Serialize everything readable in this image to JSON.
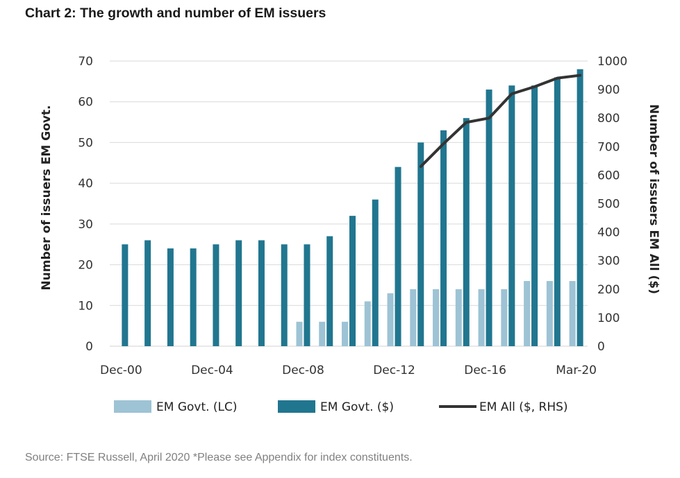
{
  "title": "Chart 2: The growth and number of EM issuers",
  "source": "Source: FTSE Russell, April 2020 *Please see Appendix for index constituents.",
  "colors": {
    "lc": "#9dc3d5",
    "usd": "#21768f",
    "all": "#333333",
    "grid": "#d9d9d9"
  },
  "chart_data": {
    "type": "bar",
    "title": "Chart 2: The growth and number of EM issuers",
    "categories": [
      "Dec-00",
      "Dec-01",
      "Dec-02",
      "Dec-03",
      "Dec-04",
      "Dec-05",
      "Dec-06",
      "Dec-07",
      "Dec-08",
      "Dec-09",
      "Dec-10",
      "Dec-11",
      "Dec-12",
      "Dec-13",
      "Dec-14",
      "Dec-15",
      "Dec-16",
      "Dec-17",
      "Dec-18",
      "Dec-19",
      "Mar-20"
    ],
    "x_tick_labels": [
      "Dec-00",
      "Dec-04",
      "Dec-08",
      "Dec-12",
      "Dec-16",
      "Mar-20"
    ],
    "ylabel": "Number of issuers EM Govt.",
    "y2label": "Number of issuers  EM All ($)",
    "ylim": [
      0,
      70
    ],
    "y2lim": [
      0,
      1000
    ],
    "y_ticks": [
      0,
      10,
      20,
      30,
      40,
      50,
      60,
      70
    ],
    "y2_ticks": [
      0,
      100,
      200,
      300,
      400,
      500,
      600,
      700,
      800,
      900,
      1000
    ],
    "legend_position": "bottom",
    "grid": true,
    "series": [
      {
        "name": "EM Govt. (LC)",
        "type": "bar",
        "axis": "left",
        "values": [
          0,
          0,
          0,
          0,
          0,
          0,
          0,
          0,
          6,
          6,
          6,
          11,
          13,
          14,
          14,
          14,
          14,
          14,
          16,
          16,
          16
        ]
      },
      {
        "name": "EM Govt. ($)",
        "type": "bar",
        "axis": "left",
        "values": [
          25,
          26,
          24,
          24,
          25,
          26,
          26,
          25,
          25,
          27,
          32,
          36,
          44,
          50,
          53,
          56,
          63,
          64,
          64,
          66,
          68
        ]
      },
      {
        "name": "EM All ($, RHS)",
        "type": "line",
        "axis": "right",
        "values": [
          null,
          null,
          null,
          null,
          null,
          null,
          null,
          null,
          null,
          null,
          null,
          null,
          null,
          630,
          710,
          785,
          800,
          885,
          910,
          940,
          950
        ]
      }
    ]
  }
}
